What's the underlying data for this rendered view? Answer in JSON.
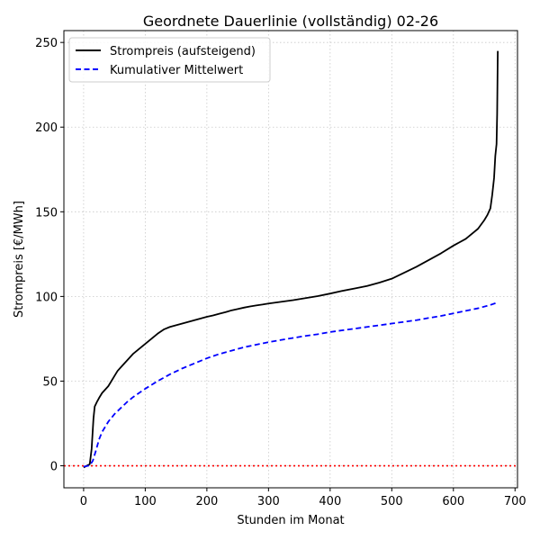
{
  "chart_data": {
    "type": "line",
    "title": "Geordnete Dauerlinie (vollständig) 02-26",
    "xlabel": "Stunden im Monat",
    "ylabel": "Strompreis [€/MWh]",
    "xlim": [
      -32,
      704
    ],
    "ylim": [
      -13,
      257
    ],
    "xticks": [
      0,
      100,
      200,
      300,
      400,
      500,
      600,
      700
    ],
    "yticks": [
      0,
      50,
      100,
      150,
      200,
      250
    ],
    "grid": true,
    "legend_position": "top-left",
    "reference_line": {
      "y": 0,
      "color": "#ff0000",
      "style": "dotted"
    },
    "series": [
      {
        "name": "Strompreis (aufsteigend)",
        "color": "#000000",
        "style": "solid",
        "points": [
          [
            0,
            -1
          ],
          [
            5,
            0
          ],
          [
            10,
            1
          ],
          [
            13,
            10
          ],
          [
            16,
            28
          ],
          [
            18,
            35
          ],
          [
            22,
            38
          ],
          [
            25,
            40
          ],
          [
            30,
            43
          ],
          [
            35,
            45
          ],
          [
            40,
            47
          ],
          [
            45,
            50
          ],
          [
            50,
            53
          ],
          [
            55,
            56
          ],
          [
            60,
            58
          ],
          [
            70,
            62
          ],
          [
            80,
            66
          ],
          [
            90,
            69
          ],
          [
            100,
            72
          ],
          [
            110,
            75
          ],
          [
            120,
            78
          ],
          [
            130,
            80.5
          ],
          [
            140,
            82
          ],
          [
            150,
            83
          ],
          [
            160,
            84
          ],
          [
            170,
            85
          ],
          [
            180,
            86
          ],
          [
            190,
            87
          ],
          [
            200,
            88
          ],
          [
            210,
            88.8
          ],
          [
            220,
            89.8
          ],
          [
            230,
            90.7
          ],
          [
            240,
            91.8
          ],
          [
            250,
            92.6
          ],
          [
            260,
            93.4
          ],
          [
            270,
            94.1
          ],
          [
            280,
            94.7
          ],
          [
            290,
            95.2
          ],
          [
            300,
            95.8
          ],
          [
            320,
            96.8
          ],
          [
            340,
            97.8
          ],
          [
            360,
            99
          ],
          [
            380,
            100.2
          ],
          [
            400,
            101.7
          ],
          [
            420,
            103.3
          ],
          [
            440,
            104.7
          ],
          [
            460,
            106.2
          ],
          [
            480,
            108.2
          ],
          [
            500,
            110.5
          ],
          [
            520,
            114
          ],
          [
            540,
            117.5
          ],
          [
            560,
            121.5
          ],
          [
            580,
            125.5
          ],
          [
            600,
            130
          ],
          [
            620,
            134
          ],
          [
            640,
            140
          ],
          [
            650,
            145
          ],
          [
            655,
            148
          ],
          [
            660,
            152
          ],
          [
            663,
            160
          ],
          [
            666,
            170
          ],
          [
            668,
            183
          ],
          [
            670,
            190
          ],
          [
            671,
            208
          ],
          [
            672,
            245
          ]
        ]
      },
      {
        "name": "Kumulativer Mittelwert",
        "color": "#0000ff",
        "style": "dashed",
        "points": [
          [
            0,
            -0.5
          ],
          [
            10,
            0.2
          ],
          [
            15,
            3
          ],
          [
            20,
            9
          ],
          [
            25,
            15.5
          ],
          [
            30,
            20
          ],
          [
            40,
            26
          ],
          [
            50,
            30.5
          ],
          [
            60,
            34
          ],
          [
            70,
            37.5
          ],
          [
            80,
            40.5
          ],
          [
            90,
            43
          ],
          [
            100,
            45.5
          ],
          [
            120,
            50
          ],
          [
            140,
            54
          ],
          [
            160,
            57.5
          ],
          [
            180,
            60.5
          ],
          [
            200,
            63.5
          ],
          [
            220,
            66
          ],
          [
            240,
            68
          ],
          [
            260,
            70
          ],
          [
            280,
            71.5
          ],
          [
            300,
            73
          ],
          [
            320,
            74.3
          ],
          [
            340,
            75.5
          ],
          [
            360,
            76.7
          ],
          [
            380,
            77.7
          ],
          [
            400,
            79
          ],
          [
            420,
            80
          ],
          [
            440,
            81
          ],
          [
            460,
            82
          ],
          [
            480,
            83
          ],
          [
            500,
            84
          ],
          [
            520,
            85
          ],
          [
            540,
            86
          ],
          [
            560,
            87.3
          ],
          [
            580,
            88.5
          ],
          [
            600,
            90
          ],
          [
            620,
            91.5
          ],
          [
            640,
            93
          ],
          [
            660,
            95
          ],
          [
            672,
            96.5
          ]
        ]
      }
    ]
  }
}
